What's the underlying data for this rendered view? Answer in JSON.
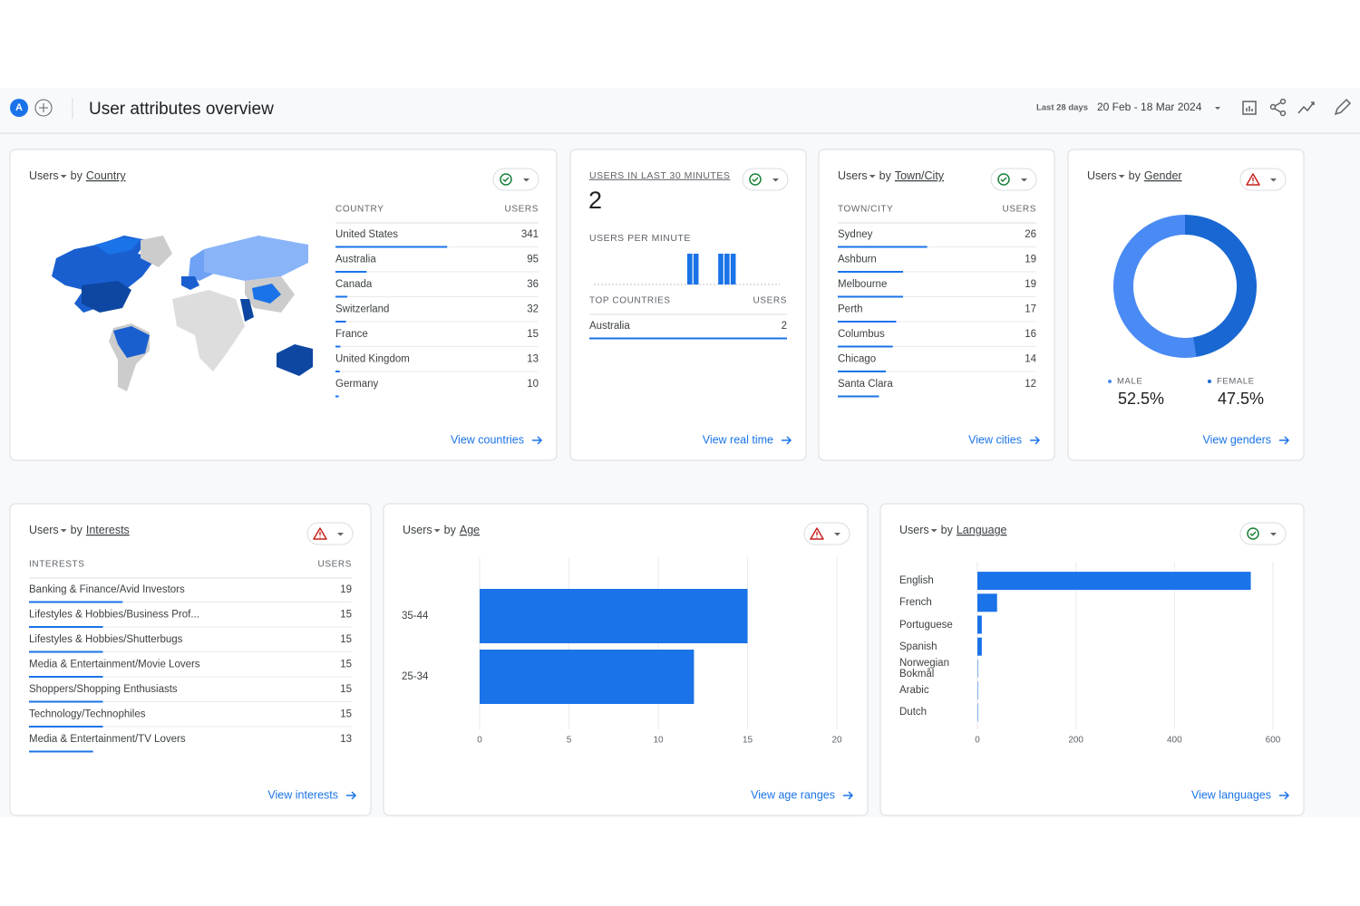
{
  "header": {
    "avatar": "A",
    "title": "User attributes overview",
    "range_label": "Last 28 days",
    "range": "20 Feb - 18 Mar 2024"
  },
  "country": {
    "metric": "Users",
    "by": "by",
    "dimension": "Country",
    "status": "ok",
    "columns": [
      "COUNTRY",
      "USERS"
    ],
    "rows": [
      [
        "United States",
        341
      ],
      [
        "Australia",
        95
      ],
      [
        "Canada",
        36
      ],
      [
        "Switzerland",
        32
      ],
      [
        "France",
        15
      ],
      [
        "United Kingdom",
        13
      ],
      [
        "Germany",
        10
      ]
    ],
    "link": "View countries"
  },
  "realtime": {
    "title": "USERS IN LAST 30 MINUTES",
    "total": 2,
    "status": "ok",
    "per_minute_label": "USERS PER MINUTE",
    "per_minute": [
      0,
      0,
      0,
      0,
      0,
      0,
      0,
      0,
      0,
      0,
      0,
      0,
      0,
      0,
      0,
      1,
      1,
      0,
      0,
      0,
      1,
      1,
      1,
      0,
      0,
      0,
      0,
      0,
      0,
      0
    ],
    "columns": [
      "TOP COUNTRIES",
      "USERS"
    ],
    "rows": [
      [
        "Australia",
        2
      ]
    ],
    "link": "View real time"
  },
  "city": {
    "metric": "Users",
    "by": "by",
    "dimension": "Town/City",
    "status": "ok",
    "columns": [
      "TOWN/CITY",
      "USERS"
    ],
    "rows": [
      [
        "Sydney",
        26
      ],
      [
        "Ashburn",
        19
      ],
      [
        "Melbourne",
        19
      ],
      [
        "Perth",
        17
      ],
      [
        "Columbus",
        16
      ],
      [
        "Chicago",
        14
      ],
      [
        "Santa Clara",
        12
      ]
    ],
    "link": "View cities"
  },
  "gender": {
    "metric": "Users",
    "by": "by",
    "dimension": "Gender",
    "status": "warning",
    "chart_data": {
      "type": "pie",
      "categories": [
        "MALE",
        "FEMALE"
      ],
      "values": [
        52.5,
        47.5
      ],
      "value_labels": [
        "52.5%",
        "47.5%"
      ],
      "colors": [
        "#4a8af4",
        "#1967d2"
      ]
    },
    "link": "View genders"
  },
  "interests": {
    "metric": "Users",
    "by": "by",
    "dimension": "Interests",
    "status": "warning",
    "columns": [
      "INTERESTS",
      "USERS"
    ],
    "rows": [
      [
        "Banking & Finance/Avid Investors",
        19
      ],
      [
        "Lifestyles & Hobbies/Business Prof...",
        15
      ],
      [
        "Lifestyles & Hobbies/Shutterbugs",
        15
      ],
      [
        "Media & Entertainment/Movie Lovers",
        15
      ],
      [
        "Shoppers/Shopping Enthusiasts",
        15
      ],
      [
        "Technology/Technophiles",
        15
      ],
      [
        "Media & Entertainment/TV Lovers",
        13
      ]
    ],
    "link": "View interests"
  },
  "age": {
    "metric": "Users",
    "by": "by",
    "dimension": "Age",
    "status": "warning",
    "chart_data": {
      "type": "bar",
      "orientation": "horizontal",
      "categories": [
        "35-44",
        "25-34"
      ],
      "values": [
        15,
        12
      ],
      "color": "#1a73e8",
      "xlim": [
        0,
        20
      ],
      "xticks": [
        0,
        5,
        10,
        15,
        20
      ],
      "grid": true
    },
    "link": "View age ranges"
  },
  "language": {
    "metric": "Users",
    "by": "by",
    "dimension": "Language",
    "status": "ok",
    "chart_data": {
      "type": "bar",
      "orientation": "horizontal",
      "categories": [
        "English",
        "French",
        "Portuguese",
        "Spanish",
        "Norwegian Bokmål",
        "Arabic",
        "Dutch"
      ],
      "values": [
        555,
        40,
        9,
        9,
        1,
        1,
        1
      ],
      "color": "#1a73e8",
      "xlim": [
        0,
        600
      ],
      "xticks": [
        0,
        200,
        400,
        600
      ],
      "grid": true
    },
    "link": "View languages"
  }
}
